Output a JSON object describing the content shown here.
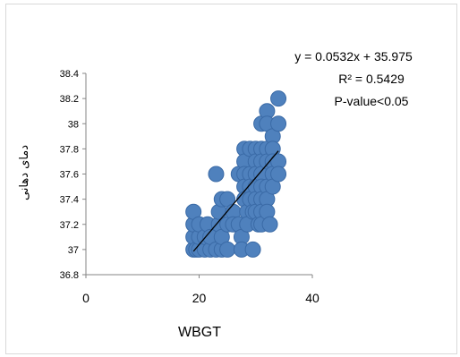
{
  "chart_data": {
    "type": "scatter",
    "title": "",
    "xlabel": "WBGT",
    "ylabel": "دمای دهانی",
    "xlim": [
      0,
      40
    ],
    "ylim": [
      36.8,
      38.4
    ],
    "x_ticks": [
      "0",
      "20",
      "40"
    ],
    "y_ticks": [
      "36.8",
      "37",
      "37.2",
      "37.4",
      "37.6",
      "37.8",
      "38",
      "38.2",
      "38.4"
    ],
    "grid": false,
    "legend": "none",
    "marker_color": "#4F81BD",
    "marker_edge_color": "#3A6AA6",
    "trendline_color": "#000000",
    "annotations": {
      "equation": "y = 0.0532x + 35.975",
      "r2": "R² = 0.5429",
      "pvalue": "P-value<0.05"
    },
    "trendline": {
      "slope": 0.0532,
      "intercept": 35.975,
      "x_range": [
        19,
        34
      ]
    },
    "points": [
      [
        19,
        37.0
      ],
      [
        19,
        37.1
      ],
      [
        19,
        37.2
      ],
      [
        19,
        37.3
      ],
      [
        19.5,
        37.0
      ],
      [
        20,
        37.0
      ],
      [
        20,
        37.1
      ],
      [
        20,
        37.2
      ],
      [
        21,
        37.0
      ],
      [
        21,
        37.1
      ],
      [
        21.5,
        37.2
      ],
      [
        22,
        37.0
      ],
      [
        22,
        37.1
      ],
      [
        23,
        37.6
      ],
      [
        23,
        37.0
      ],
      [
        23.5,
        37.2
      ],
      [
        23.5,
        37.3
      ],
      [
        24,
        37.4
      ],
      [
        24,
        37.0
      ],
      [
        24,
        37.1
      ],
      [
        25,
        37.0
      ],
      [
        25,
        37.2
      ],
      [
        25,
        37.4
      ],
      [
        26,
        37.3
      ],
      [
        26,
        37.2
      ],
      [
        27,
        37.6
      ],
      [
        27,
        37.2
      ],
      [
        27.5,
        37.1
      ],
      [
        27.5,
        37.0
      ],
      [
        28,
        37.8
      ],
      [
        28,
        37.7
      ],
      [
        28,
        37.6
      ],
      [
        28,
        37.5
      ],
      [
        28,
        37.4
      ],
      [
        28.5,
        37.3
      ],
      [
        28.5,
        37.2
      ],
      [
        29,
        37.8
      ],
      [
        29,
        37.6
      ],
      [
        29,
        37.5
      ],
      [
        29,
        37.4
      ],
      [
        29.5,
        37.3
      ],
      [
        29.5,
        37.0
      ],
      [
        30,
        37.8
      ],
      [
        30,
        37.7
      ],
      [
        30,
        37.6
      ],
      [
        30,
        37.5
      ],
      [
        30,
        37.4
      ],
      [
        30,
        37.3
      ],
      [
        30.5,
        37.2
      ],
      [
        31,
        38.0
      ],
      [
        31,
        37.8
      ],
      [
        31,
        37.7
      ],
      [
        31,
        37.6
      ],
      [
        31,
        37.5
      ],
      [
        31,
        37.4
      ],
      [
        31,
        37.3
      ],
      [
        31,
        37.2
      ],
      [
        32,
        38.1
      ],
      [
        32,
        38.0
      ],
      [
        32,
        37.8
      ],
      [
        32,
        37.7
      ],
      [
        32,
        37.5
      ],
      [
        32,
        37.4
      ],
      [
        32,
        37.3
      ],
      [
        32.5,
        37.2
      ],
      [
        33,
        37.9
      ],
      [
        33,
        37.8
      ],
      [
        33,
        37.7
      ],
      [
        33,
        37.6
      ],
      [
        33,
        37.5
      ],
      [
        34,
        38.2
      ],
      [
        34,
        38.0
      ],
      [
        34,
        37.7
      ],
      [
        34,
        37.6
      ]
    ]
  }
}
